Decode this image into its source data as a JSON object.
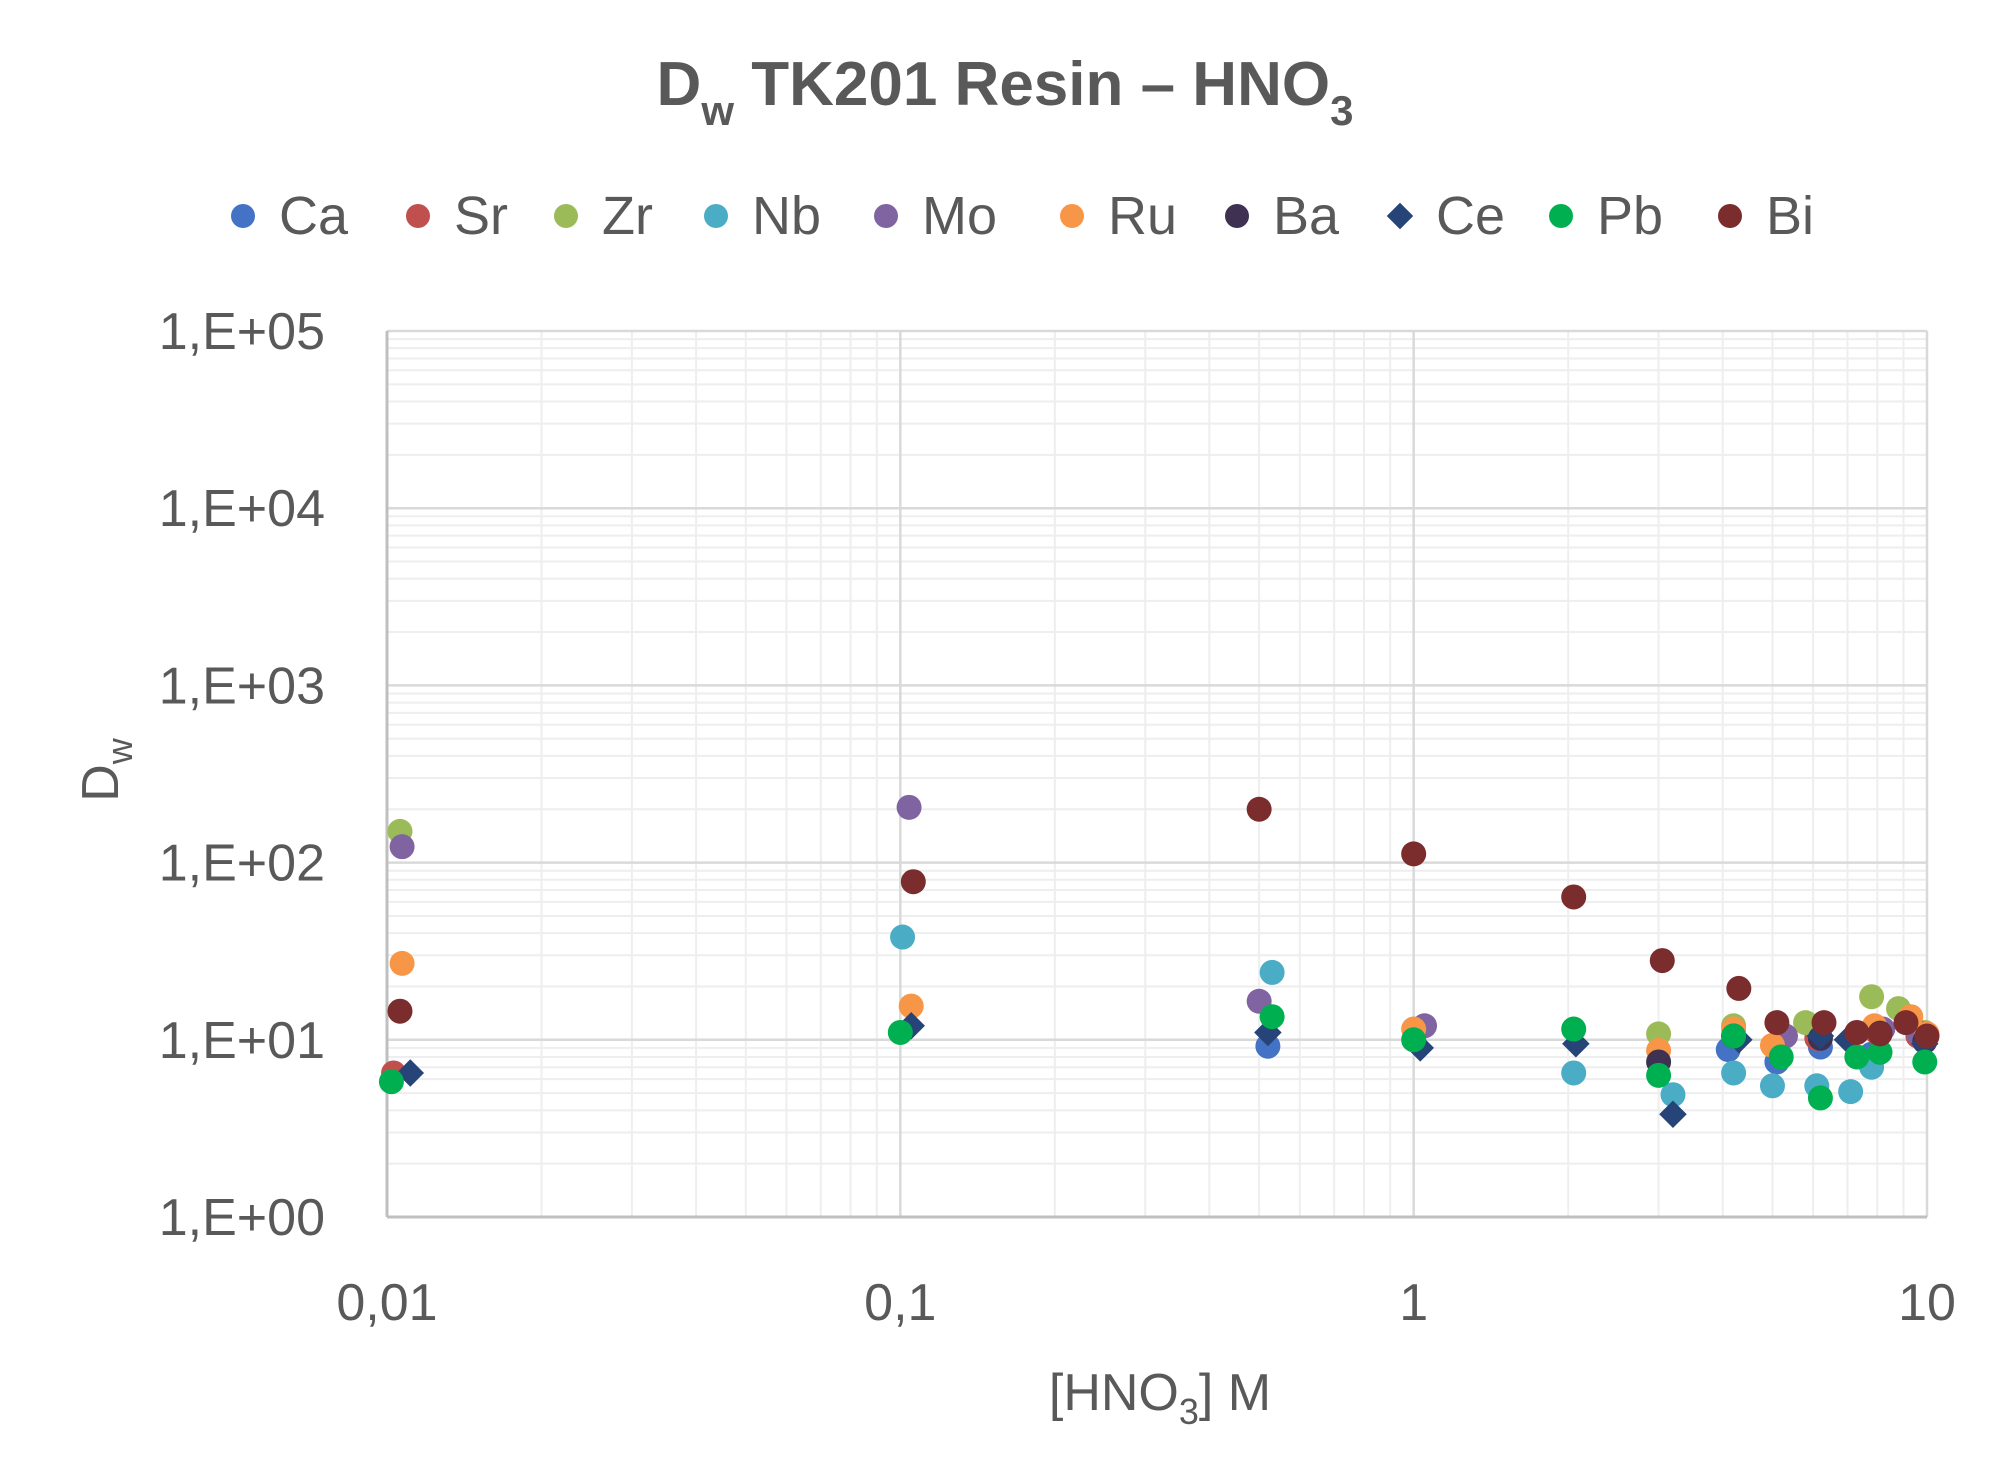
{
  "chart_data": {
    "type": "scatter",
    "title": {
      "main": "D",
      "main_sub": "w",
      "rest": " TK201 Resin – HNO",
      "rest_sub": "3"
    },
    "xlabel": {
      "pre": "[HNO",
      "sub": "3",
      "post": "] M"
    },
    "ylabel": {
      "main": "D",
      "sub": "w"
    },
    "x_scale": "log",
    "y_scale": "log",
    "xlim": [
      0.01,
      10
    ],
    "ylim": [
      1,
      100000
    ],
    "x_ticks": [
      {
        "value": 0.01,
        "label": "0,01"
      },
      {
        "value": 0.1,
        "label": "0,1"
      },
      {
        "value": 1,
        "label": "1"
      },
      {
        "value": 10,
        "label": "10"
      }
    ],
    "y_ticks": [
      {
        "value": 1,
        "label": "1,E+00"
      },
      {
        "value": 10,
        "label": "1,E+01"
      },
      {
        "value": 100,
        "label": "1,E+02"
      },
      {
        "value": 1000,
        "label": "1,E+03"
      },
      {
        "value": 10000,
        "label": "1,E+04"
      },
      {
        "value": 100000,
        "label": "1,E+05"
      }
    ],
    "grid": true,
    "legend_position": "top",
    "series": [
      {
        "name": "Ca",
        "color": "#4472C4",
        "marker": "circle",
        "points": [
          [
            0.52,
            9.2
          ],
          [
            4.1,
            8.8
          ],
          [
            5.1,
            7.5
          ],
          [
            6.2,
            9.1
          ],
          [
            7.8,
            8.3
          ],
          [
            9.9,
            9.8
          ]
        ]
      },
      {
        "name": "Sr",
        "color": "#C0504D",
        "marker": "circle",
        "points": [
          [
            0.0103,
            6.5
          ],
          [
            4.2,
            10.5
          ],
          [
            6.1,
            10.2
          ],
          [
            8.0,
            11
          ],
          [
            9.6,
            10.5
          ]
        ]
      },
      {
        "name": "Zr",
        "color": "#9BBB59",
        "marker": "circle",
        "points": [
          [
            0.0106,
            150
          ],
          [
            3.0,
            10.8
          ],
          [
            4.2,
            12
          ],
          [
            5.8,
            12.5
          ],
          [
            7.8,
            17.5
          ],
          [
            8.8,
            15
          ],
          [
            9.9,
            11
          ]
        ]
      },
      {
        "name": "Nb",
        "color": "#4BACC6",
        "marker": "circle",
        "points": [
          [
            0.101,
            38
          ],
          [
            0.53,
            24
          ],
          [
            2.05,
            6.5
          ],
          [
            3.2,
            4.9
          ],
          [
            4.2,
            6.5
          ],
          [
            5.0,
            5.5
          ],
          [
            6.1,
            5.5
          ],
          [
            7.1,
            5.1
          ],
          [
            7.8,
            7
          ]
        ]
      },
      {
        "name": "Mo",
        "color": "#8064A2",
        "marker": "circle",
        "points": [
          [
            0.0107,
            123
          ],
          [
            0.104,
            205
          ],
          [
            0.5,
            16.5
          ],
          [
            1.05,
            12
          ],
          [
            5.3,
            10.5
          ],
          [
            8.2,
            11.5
          ],
          [
            9.6,
            11
          ]
        ]
      },
      {
        "name": "Ru",
        "color": "#F79646",
        "marker": "circle",
        "points": [
          [
            0.0107,
            27
          ],
          [
            0.105,
            15.5
          ],
          [
            1.0,
            11.5
          ],
          [
            3.0,
            8.7
          ],
          [
            4.2,
            11.5
          ],
          [
            5.0,
            9.3
          ],
          [
            7.9,
            12
          ],
          [
            9.3,
            13.5
          ],
          [
            10,
            10.8
          ]
        ]
      },
      {
        "name": "Ba",
        "color": "#3F3151",
        "marker": "circle",
        "points": [
          [
            3.0,
            7.5
          ],
          [
            4.2,
            10.5
          ],
          [
            6.2,
            10.2
          ],
          [
            8.1,
            10.9
          ],
          [
            9.9,
            9.8
          ]
        ]
      },
      {
        "name": "Ce",
        "color": "#264478",
        "marker": "diamond",
        "points": [
          [
            0.0111,
            6.5
          ],
          [
            0.105,
            12
          ],
          [
            0.52,
            11
          ],
          [
            1.03,
            9
          ],
          [
            2.07,
            9.5
          ],
          [
            3.2,
            3.8
          ],
          [
            4.3,
            10
          ],
          [
            6.2,
            10.5
          ],
          [
            7.0,
            10
          ],
          [
            9.9,
            9.5
          ]
        ]
      },
      {
        "name": "Pb",
        "color": "#00B050",
        "marker": "circle",
        "points": [
          [
            0.0102,
            5.8
          ],
          [
            0.1,
            11
          ],
          [
            0.53,
            13.5
          ],
          [
            1.0,
            10
          ],
          [
            2.05,
            11.5
          ],
          [
            3.0,
            6.3
          ],
          [
            4.2,
            10.5
          ],
          [
            5.2,
            8
          ],
          [
            6.2,
            4.7
          ],
          [
            7.3,
            8
          ],
          [
            8.1,
            8.5
          ],
          [
            9.9,
            7.5
          ]
        ]
      },
      {
        "name": "Bi",
        "color": "#7B2C2C",
        "marker": "circle",
        "points": [
          [
            0.0106,
            14.5
          ],
          [
            0.106,
            78
          ],
          [
            0.5,
            200
          ],
          [
            1.0,
            112
          ],
          [
            2.05,
            64
          ],
          [
            3.05,
            28
          ],
          [
            4.3,
            19.5
          ],
          [
            5.1,
            12.5
          ],
          [
            6.3,
            12.5
          ],
          [
            7.3,
            11
          ],
          [
            8.1,
            10.8
          ],
          [
            9.1,
            12.5
          ],
          [
            10,
            10.5
          ]
        ]
      }
    ]
  }
}
